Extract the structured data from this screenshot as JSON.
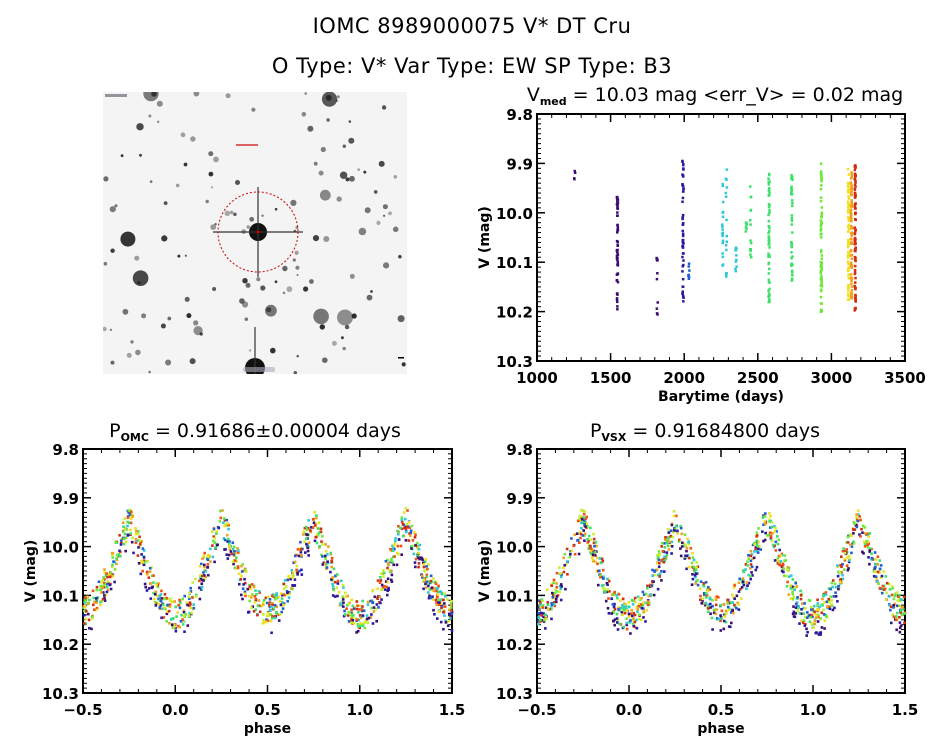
{
  "header": {
    "title_line1": "IOMC 8989000075    V* DT Cru",
    "title_line2": "O Type: V*   Var Type: EW   SP Type: B3"
  },
  "sky_image": {
    "description": "grayscale DSS field image centered on target, red dashed circle marking target",
    "marker_color": "#cc0000"
  },
  "colors": {
    "frame": "#000000",
    "palette": [
      "#3b0f70",
      "#2c1a9e",
      "#1f5fd0",
      "#2ec8d8",
      "#3de06a",
      "#6ee83a",
      "#c8f030",
      "#f0e020",
      "#f0a020",
      "#f05010",
      "#d03010"
    ]
  },
  "chart_data": [
    {
      "id": "lightcurve",
      "type": "scatter",
      "title_main": "V",
      "title_sub": "med",
      "title_rest": " = 10.03 mag <err_V> = 0.02 mag",
      "xlabel": "Barytime (days)",
      "ylabel": "V (mag)",
      "xlim": [
        1000,
        3500
      ],
      "ylim": [
        10.3,
        9.8
      ],
      "y_inverted": true,
      "xticks": [
        "1000",
        "1500",
        "2000",
        "2500",
        "3000",
        "3500"
      ],
      "xtick_values": [
        1000,
        1500,
        2000,
        2500,
        3000,
        3500
      ],
      "yticks": [
        "9.8",
        "9.9",
        "10.0",
        "10.1",
        "10.2",
        "10.3"
      ],
      "ytick_values": [
        9.8,
        9.9,
        10.0,
        10.1,
        10.2,
        10.3
      ],
      "clusters": [
        {
          "t": 1255,
          "vmin": 9.915,
          "vmax": 9.945,
          "color_index": 0,
          "n": 4
        },
        {
          "t": 1545,
          "vmin": 9.965,
          "vmax": 10.2,
          "color_index": 0,
          "n": 60
        },
        {
          "t": 1815,
          "vmin": 10.065,
          "vmax": 10.215,
          "color_index": 0,
          "n": 10
        },
        {
          "t": 1990,
          "vmin": 9.89,
          "vmax": 10.18,
          "color_index": 1,
          "n": 55
        },
        {
          "t": 2030,
          "vmin": 10.1,
          "vmax": 10.14,
          "color_index": 2,
          "n": 8
        },
        {
          "t": 2260,
          "vmin": 9.94,
          "vmax": 10.12,
          "color_index": 3,
          "n": 18
        },
        {
          "t": 2285,
          "vmin": 9.905,
          "vmax": 10.145,
          "color_index": 3,
          "n": 16
        },
        {
          "t": 2350,
          "vmin": 10.07,
          "vmax": 10.135,
          "color_index": 3,
          "n": 10
        },
        {
          "t": 2420,
          "vmin": 10.01,
          "vmax": 10.05,
          "color_index": 4,
          "n": 6
        },
        {
          "t": 2450,
          "vmin": 9.915,
          "vmax": 10.095,
          "color_index": 4,
          "n": 14
        },
        {
          "t": 2575,
          "vmin": 9.915,
          "vmax": 10.19,
          "color_index": 4,
          "n": 60
        },
        {
          "t": 2730,
          "vmin": 9.92,
          "vmax": 10.14,
          "color_index": 4,
          "n": 45
        },
        {
          "t": 2930,
          "vmin": 9.895,
          "vmax": 10.2,
          "color_index": 5,
          "n": 70
        },
        {
          "t": 3115,
          "vmin": 9.91,
          "vmax": 10.18,
          "color_index": 7,
          "n": 80
        },
        {
          "t": 3135,
          "vmin": 9.91,
          "vmax": 10.18,
          "color_index": 8,
          "n": 80
        },
        {
          "t": 3160,
          "vmin": 9.9,
          "vmax": 10.2,
          "color_index": 10,
          "n": 90
        }
      ]
    },
    {
      "id": "phase-omc",
      "type": "scatter",
      "title_main": "P",
      "title_sub": "OMC",
      "title_rest": " = 0.91686±0.00004 days",
      "period_days": 0.91686,
      "period_err_days": 4e-05,
      "xlabel": "phase",
      "ylabel": "V (mag)",
      "xlim": [
        -0.5,
        1.5
      ],
      "ylim": [
        10.3,
        9.8
      ],
      "y_inverted": true,
      "xticks": [
        "−0.5",
        "0.0",
        "0.5",
        "1.0",
        "1.5"
      ],
      "xtick_values": [
        -0.5,
        0.0,
        0.5,
        1.0,
        1.5
      ],
      "yticks": [
        "9.8",
        "9.9",
        "10.0",
        "10.1",
        "10.2",
        "10.3"
      ],
      "ytick_values": [
        9.8,
        9.9,
        10.0,
        10.1,
        10.2,
        10.3
      ],
      "curve_model": {
        "description": "EW-type light curve, maxima near phase 0.25/0.75, primary minimum 0.0, secondary 0.5",
        "max_mag": 9.95,
        "min_primary_mag": 10.14,
        "min_secondary_mag": 10.13,
        "scatter_mag": 0.03
      }
    },
    {
      "id": "phase-vsx",
      "type": "scatter",
      "title_main": "P",
      "title_sub": "VSX",
      "title_rest": " = 0.91684800 days",
      "period_days": 0.916848,
      "xlabel": "phase",
      "ylabel": "V (mag)",
      "xlim": [
        -0.5,
        1.5
      ],
      "ylim": [
        10.3,
        9.8
      ],
      "y_inverted": true,
      "xticks": [
        "−0.5",
        "0.0",
        "0.5",
        "1.0",
        "1.5"
      ],
      "xtick_values": [
        -0.5,
        0.0,
        0.5,
        1.0,
        1.5
      ],
      "yticks": [
        "9.8",
        "9.9",
        "10.0",
        "10.1",
        "10.2",
        "10.3"
      ],
      "ytick_values": [
        9.8,
        9.9,
        10.0,
        10.1,
        10.2,
        10.3
      ],
      "curve_model": {
        "description": "EW-type light curve, maxima near phase 0.25/0.75, primary minimum 0.0, secondary 0.5",
        "max_mag": 9.95,
        "min_primary_mag": 10.14,
        "min_secondary_mag": 10.13,
        "scatter_mag": 0.03
      }
    }
  ]
}
